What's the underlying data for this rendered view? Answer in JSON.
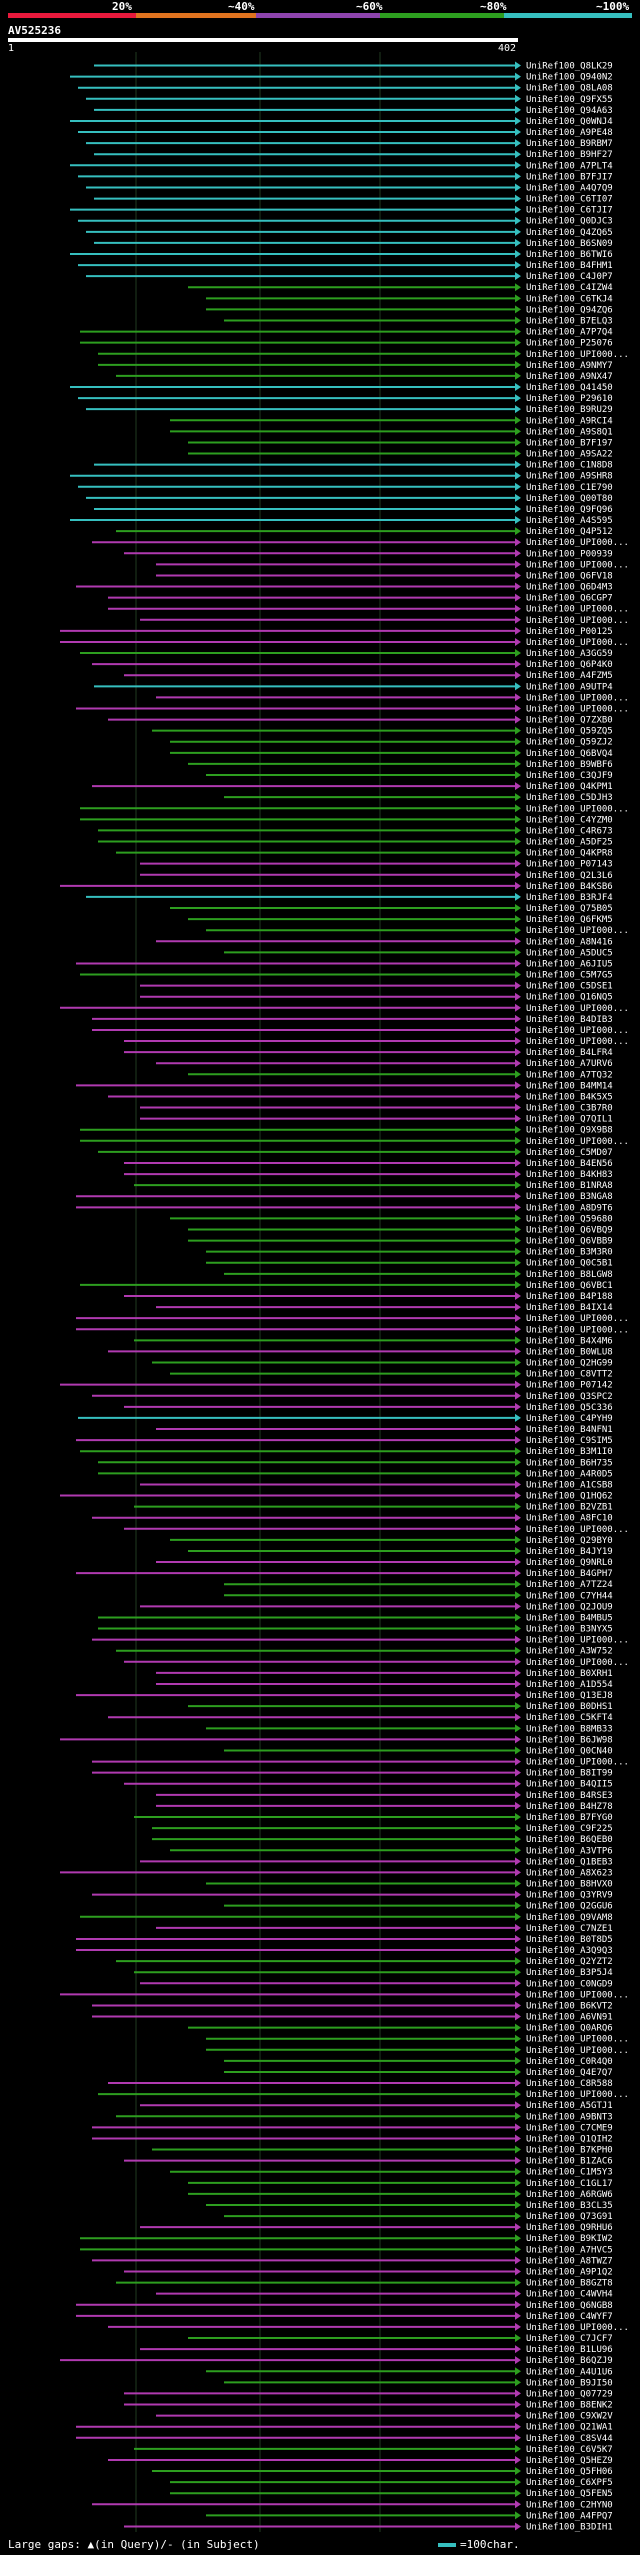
{
  "scale_labels": [
    "20%",
    "~40%",
    "~60%",
    "~80%",
    "~100%"
  ],
  "scale_colors": [
    "#e8193c",
    "#e0731f",
    "#8e44ad",
    "#2d9e1f",
    "#36bfbf"
  ],
  "query": {
    "name": "AV525236",
    "start": "1",
    "end": "402"
  },
  "legend": {
    "gaps": "Large gaps: ▲(in Query)/- (in Subject)",
    "scale": "=100char."
  },
  "hits": [
    {
      "id": "UniRef100_Q8LK29",
      "color": "cyan"
    },
    {
      "id": "UniRef100_Q940N2",
      "color": "cyan"
    },
    {
      "id": "UniRef100_Q8LA08",
      "color": "cyan"
    },
    {
      "id": "UniRef100_Q9FX55",
      "color": "cyan"
    },
    {
      "id": "UniRef100_Q94A63",
      "color": "cyan"
    },
    {
      "id": "UniRef100_Q0WNJ4",
      "color": "cyan"
    },
    {
      "id": "UniRef100_A9PE48",
      "color": "cyan"
    },
    {
      "id": "UniRef100_B9RBM7",
      "color": "cyan"
    },
    {
      "id": "UniRef100_B9HF27",
      "color": "cyan"
    },
    {
      "id": "UniRef100_A7PLT4",
      "color": "cyan"
    },
    {
      "id": "UniRef100_B7FJI7",
      "color": "cyan"
    },
    {
      "id": "UniRef100_A4Q7Q9",
      "color": "cyan"
    },
    {
      "id": "UniRef100_C6TI07",
      "color": "cyan"
    },
    {
      "id": "UniRef100_C6TJI7",
      "color": "cyan"
    },
    {
      "id": "UniRef100_Q0DJC3",
      "color": "cyan"
    },
    {
      "id": "UniRef100_Q4ZQ65",
      "color": "cyan"
    },
    {
      "id": "UniRef100_B6SN09",
      "color": "cyan"
    },
    {
      "id": "UniRef100_B6TWI6",
      "color": "cyan"
    },
    {
      "id": "UniRef100_B4FHM1",
      "color": "cyan"
    },
    {
      "id": "UniRef100_C4J0P7",
      "color": "cyan"
    },
    {
      "id": "UniRef100_C4IZW4",
      "color": "green"
    },
    {
      "id": "UniRef100_C6TKJ4",
      "color": "green"
    },
    {
      "id": "UniRef100_Q94ZQ6",
      "color": "green"
    },
    {
      "id": "UniRef100_B7ELQ3",
      "color": "green"
    },
    {
      "id": "UniRef100_A7P7Q4",
      "color": "green"
    },
    {
      "id": "UniRef100_P25076",
      "color": "green"
    },
    {
      "id": "UniRef100_UPI000...",
      "color": "green"
    },
    {
      "id": "UniRef100_A9NMY7",
      "color": "green"
    },
    {
      "id": "UniRef100_A9NX47",
      "color": "green"
    },
    {
      "id": "UniRef100_Q41450",
      "color": "cyan"
    },
    {
      "id": "UniRef100_P29610",
      "color": "cyan"
    },
    {
      "id": "UniRef100_B9RU29",
      "color": "cyan"
    },
    {
      "id": "UniRef100_A9RCI4",
      "color": "green"
    },
    {
      "id": "UniRef100_A9S8Q1",
      "color": "green"
    },
    {
      "id": "UniRef100_B7F197",
      "color": "green"
    },
    {
      "id": "UniRef100_A9SA22",
      "color": "green"
    },
    {
      "id": "UniRef100_C1N8D8",
      "color": "cyan"
    },
    {
      "id": "UniRef100_A9SHR8",
      "color": "cyan"
    },
    {
      "id": "UniRef100_C1E790",
      "color": "cyan"
    },
    {
      "id": "UniRef100_Q00T80",
      "color": "cyan"
    },
    {
      "id": "UniRef100_Q9FQ96",
      "color": "cyan"
    },
    {
      "id": "UniRef100_A4S595",
      "color": "cyan"
    },
    {
      "id": "UniRef100_Q4P512",
      "color": "green"
    },
    {
      "id": "UniRef100_UPI000...",
      "color": "magenta"
    },
    {
      "id": "UniRef100_P00939",
      "color": "magenta"
    },
    {
      "id": "UniRef100_UPI000...",
      "color": "magenta"
    },
    {
      "id": "UniRef100_Q6FV18",
      "color": "magenta"
    },
    {
      "id": "UniRef100_Q6D4M3",
      "color": "magenta"
    },
    {
      "id": "UniRef100_Q6CGP7",
      "color": "magenta"
    },
    {
      "id": "UniRef100_UPI000...",
      "color": "magenta"
    },
    {
      "id": "UniRef100_UPI000...",
      "color": "magenta"
    },
    {
      "id": "UniRef100_P00125",
      "color": "magenta"
    },
    {
      "id": "UniRef100_UPI000...",
      "color": "magenta"
    },
    {
      "id": "UniRef100_A3GG59",
      "color": "green"
    },
    {
      "id": "UniRef100_Q6P4K0",
      "color": "magenta"
    },
    {
      "id": "UniRef100_A4FZM5",
      "color": "magenta"
    },
    {
      "id": "UniRef100_A9UTP4",
      "color": "cyan"
    },
    {
      "id": "UniRef100_UPI000...",
      "color": "magenta"
    },
    {
      "id": "UniRef100_UPI000...",
      "color": "magenta"
    },
    {
      "id": "UniRef100_Q7ZXB0",
      "color": "magenta"
    },
    {
      "id": "UniRef100_Q59ZQ5",
      "color": "green"
    },
    {
      "id": "UniRef100_Q59ZJ2",
      "color": "green"
    },
    {
      "id": "UniRef100_Q6BVQ4",
      "color": "green"
    },
    {
      "id": "UniRef100_B9WBF6",
      "color": "green"
    },
    {
      "id": "UniRef100_C3QJF9",
      "color": "green"
    },
    {
      "id": "UniRef100_Q4KPM1",
      "color": "magenta"
    },
    {
      "id": "UniRef100_C5DJH3",
      "color": "green"
    },
    {
      "id": "UniRef100_UPI000...",
      "color": "green"
    },
    {
      "id": "UniRef100_C4YZM0",
      "color": "green"
    },
    {
      "id": "UniRef100_C4R673",
      "color": "green"
    },
    {
      "id": "UniRef100_A5DF25",
      "color": "green"
    },
    {
      "id": "UniRef100_Q4KPR8",
      "color": "green"
    },
    {
      "id": "UniRef100_P07143",
      "color": "magenta"
    },
    {
      "id": "UniRef100_Q2L3L6",
      "color": "magenta"
    },
    {
      "id": "UniRef100_B4KSB6",
      "color": "magenta"
    },
    {
      "id": "UniRef100_B3RJF4",
      "color": "cyan"
    },
    {
      "id": "UniRef100_Q75B05",
      "color": "green"
    },
    {
      "id": "UniRef100_Q6FKM5",
      "color": "green"
    },
    {
      "id": "UniRef100_UPI000...",
      "color": "green"
    },
    {
      "id": "UniRef100_A8N416",
      "color": "magenta"
    },
    {
      "id": "UniRef100_A5DUC5",
      "color": "green"
    },
    {
      "id": "UniRef100_A6JIU5",
      "color": "magenta"
    },
    {
      "id": "UniRef100_C5M7G5",
      "color": "green"
    },
    {
      "id": "UniRef100_C5DSE1",
      "color": "magenta"
    },
    {
      "id": "UniRef100_Q16NQ5",
      "color": "magenta"
    },
    {
      "id": "UniRef100_UPI000...",
      "color": "magenta"
    },
    {
      "id": "UniRef100_B4DIB3",
      "color": "magenta"
    },
    {
      "id": "UniRef100_UPI000...",
      "color": "magenta"
    },
    {
      "id": "UniRef100_UPI000...",
      "color": "magenta"
    },
    {
      "id": "UniRef100_B4LFR4",
      "color": "magenta"
    },
    {
      "id": "UniRef100_A7URV6",
      "color": "magenta"
    },
    {
      "id": "UniRef100_A7TQ32",
      "color": "green"
    },
    {
      "id": "UniRef100_B4MM14",
      "color": "magenta"
    },
    {
      "id": "UniRef100_B4K5X5",
      "color": "magenta"
    },
    {
      "id": "UniRef100_C3B7R0",
      "color": "magenta"
    },
    {
      "id": "UniRef100_Q7QIL1",
      "color": "magenta"
    },
    {
      "id": "UniRef100_Q9X9B8",
      "color": "green"
    },
    {
      "id": "UniRef100_UPI000...",
      "color": "green"
    },
    {
      "id": "UniRef100_C5MD07",
      "color": "green"
    },
    {
      "id": "UniRef100_B4EN56",
      "color": "magenta"
    },
    {
      "id": "UniRef100_B4KH83",
      "color": "magenta"
    },
    {
      "id": "UniRef100_B1NRA8",
      "color": "green"
    },
    {
      "id": "UniRef100_B3NGA8",
      "color": "magenta"
    },
    {
      "id": "UniRef100_A8D9T6",
      "color": "magenta"
    },
    {
      "id": "UniRef100_Q59680",
      "color": "green"
    },
    {
      "id": "UniRef100_Q6VBQ9",
      "color": "green"
    },
    {
      "id": "UniRef100_Q6VBB9",
      "color": "green"
    },
    {
      "id": "UniRef100_B3M3R0",
      "color": "green"
    },
    {
      "id": "UniRef100_Q0C5B1",
      "color": "green"
    },
    {
      "id": "UniRef100_B8LGW8",
      "color": "green"
    },
    {
      "id": "UniRef100_Q6VBC1",
      "color": "green"
    },
    {
      "id": "UniRef100_B4P188",
      "color": "magenta"
    },
    {
      "id": "UniRef100_B4IX14",
      "color": "magenta"
    },
    {
      "id": "UniRef100_UPI000...",
      "color": "magenta"
    },
    {
      "id": "UniRef100_UPI000...",
      "color": "magenta"
    },
    {
      "id": "UniRef100_B4X4M6",
      "color": "green"
    },
    {
      "id": "UniRef100_B0WLU8",
      "color": "magenta"
    },
    {
      "id": "UniRef100_Q2HG99",
      "color": "green"
    },
    {
      "id": "UniRef100_C8VTT2",
      "color": "green"
    },
    {
      "id": "UniRef100_P07142",
      "color": "magenta"
    },
    {
      "id": "UniRef100_Q3SPC2",
      "color": "magenta"
    },
    {
      "id": "UniRef100_Q5C336",
      "color": "magenta"
    },
    {
      "id": "UniRef100_C4PYH9",
      "color": "cyan"
    },
    {
      "id": "UniRef100_B4NFN1",
      "color": "magenta"
    },
    {
      "id": "UniRef100_C9SIM5",
      "color": "magenta"
    },
    {
      "id": "UniRef100_B3M1I0",
      "color": "green"
    },
    {
      "id": "UniRef100_B6H735",
      "color": "green"
    },
    {
      "id": "UniRef100_A4R0D5",
      "color": "green"
    },
    {
      "id": "UniRef100_A1CSB8",
      "color": "magenta"
    },
    {
      "id": "UniRef100_Q1HQ62",
      "color": "magenta"
    },
    {
      "id": "UniRef100_B2VZB1",
      "color": "green"
    },
    {
      "id": "UniRef100_A8FC10",
      "color": "magenta"
    },
    {
      "id": "UniRef100_UPI000...",
      "color": "magenta"
    },
    {
      "id": "UniRef100_Q29BY0",
      "color": "green"
    },
    {
      "id": "UniRef100_B4JY19",
      "color": "green"
    },
    {
      "id": "UniRef100_Q9NRL0",
      "color": "magenta"
    },
    {
      "id": "UniRef100_B4GPH7",
      "color": "magenta"
    },
    {
      "id": "UniRef100_A7TZ24",
      "color": "green"
    },
    {
      "id": "UniRef100_C7YH44",
      "color": "green"
    },
    {
      "id": "UniRef100_Q2JOU9",
      "color": "magenta"
    },
    {
      "id": "UniRef100_B4MBU5",
      "color": "green"
    },
    {
      "id": "UniRef100_B3NYX5",
      "color": "green"
    },
    {
      "id": "UniRef100_UPI000...",
      "color": "magenta"
    },
    {
      "id": "UniRef100_A3W752",
      "color": "green"
    },
    {
      "id": "UniRef100_UPI000...",
      "color": "magenta"
    },
    {
      "id": "UniRef100_B0XRH1",
      "color": "magenta"
    },
    {
      "id": "UniRef100_A1D554",
      "color": "magenta"
    },
    {
      "id": "UniRef100_Q13EJ8",
      "color": "magenta"
    },
    {
      "id": "UniRef100_B0DHS1",
      "color": "green"
    },
    {
      "id": "UniRef100_C5KFT4",
      "color": "magenta"
    },
    {
      "id": "UniRef100_B8MB33",
      "color": "green"
    },
    {
      "id": "UniRef100_B6JW98",
      "color": "magenta"
    },
    {
      "id": "UniRef100_Q0CN40",
      "color": "green"
    },
    {
      "id": "UniRef100_UPI000...",
      "color": "magenta"
    },
    {
      "id": "UniRef100_B8IT99",
      "color": "magenta"
    },
    {
      "id": "UniRef100_B4QII5",
      "color": "magenta"
    },
    {
      "id": "UniRef100_B4RSE3",
      "color": "magenta"
    },
    {
      "id": "UniRef100_B4HZ78",
      "color": "magenta"
    },
    {
      "id": "UniRef100_B7FYG0",
      "color": "green"
    },
    {
      "id": "UniRef100_C9F225",
      "color": "green"
    },
    {
      "id": "UniRef100_B6QEB0",
      "color": "green"
    },
    {
      "id": "UniRef100_A3VTP6",
      "color": "green"
    },
    {
      "id": "UniRef100_Q1BEB3",
      "color": "magenta"
    },
    {
      "id": "UniRef100_A8X623",
      "color": "magenta"
    },
    {
      "id": "UniRef100_B8HVX0",
      "color": "green"
    },
    {
      "id": "UniRef100_Q3YRV9",
      "color": "magenta"
    },
    {
      "id": "UniRef100_Q2GGU6",
      "color": "green"
    },
    {
      "id": "UniRef100_Q9VAM8",
      "color": "green"
    },
    {
      "id": "UniRef100_C7NZE1",
      "color": "magenta"
    },
    {
      "id": "UniRef100_B0T8D5",
      "color": "magenta"
    },
    {
      "id": "UniRef100_A3Q9Q3",
      "color": "magenta"
    },
    {
      "id": "UniRef100_Q2YZT2",
      "color": "green"
    },
    {
      "id": "UniRef100_B3P5J4",
      "color": "green"
    },
    {
      "id": "UniRef100_C0NGD9",
      "color": "magenta"
    },
    {
      "id": "UniRef100_UPI000...",
      "color": "magenta"
    },
    {
      "id": "UniRef100_B6KVT2",
      "color": "magenta"
    },
    {
      "id": "UniRef100_A6VN91",
      "color": "magenta"
    },
    {
      "id": "UniRef100_Q0ARQ6",
      "color": "green"
    },
    {
      "id": "UniRef100_UPI000...",
      "color": "green"
    },
    {
      "id": "UniRef100_UPI000...",
      "color": "green"
    },
    {
      "id": "UniRef100_C0R4Q0",
      "color": "green"
    },
    {
      "id": "UniRef100_Q4E7Q7",
      "color": "green"
    },
    {
      "id": "UniRef100_C8R588",
      "color": "magenta"
    },
    {
      "id": "UniRef100_UPI000...",
      "color": "green"
    },
    {
      "id": "UniRef100_A5GTJ1",
      "color": "magenta"
    },
    {
      "id": "UniRef100_A9BNT3",
      "color": "green"
    },
    {
      "id": "UniRef100_C7CME9",
      "color": "magenta"
    },
    {
      "id": "UniRef100_Q1QIH2",
      "color": "magenta"
    },
    {
      "id": "UniRef100_B7KPH0",
      "color": "green"
    },
    {
      "id": "UniRef100_B1ZAC6",
      "color": "magenta"
    },
    {
      "id": "UniRef100_C1M5Y3",
      "color": "green"
    },
    {
      "id": "UniRef100_C1GL17",
      "color": "green"
    },
    {
      "id": "UniRef100_A6RGW6",
      "color": "green"
    },
    {
      "id": "UniRef100_B3CL35",
      "color": "green"
    },
    {
      "id": "UniRef100_Q73G91",
      "color": "green"
    },
    {
      "id": "UniRef100_Q9RHU6",
      "color": "magenta"
    },
    {
      "id": "UniRef100_B9KIW2",
      "color": "green"
    },
    {
      "id": "UniRef100_A7HVC5",
      "color": "green"
    },
    {
      "id": "UniRef100_A8TWZ7",
      "color": "magenta"
    },
    {
      "id": "UniRef100_A9P1Q2",
      "color": "magenta"
    },
    {
      "id": "UniRef100_B8GZT8",
      "color": "green"
    },
    {
      "id": "UniRef100_C4WVH4",
      "color": "magenta"
    },
    {
      "id": "UniRef100_Q6NGB8",
      "color": "magenta"
    },
    {
      "id": "UniRef100_C4WYF7",
      "color": "magenta"
    },
    {
      "id": "UniRef100_UPI000...",
      "color": "magenta"
    },
    {
      "id": "UniRef100_C7JCF7",
      "color": "green"
    },
    {
      "id": "UniRef100_B1LU96",
      "color": "magenta"
    },
    {
      "id": "UniRef100_B6QZJ9",
      "color": "magenta"
    },
    {
      "id": "UniRef100_A4U1U6",
      "color": "green"
    },
    {
      "id": "UniRef100_B9JI50",
      "color": "green"
    },
    {
      "id": "UniRef100_Q07729",
      "color": "magenta"
    },
    {
      "id": "UniRef100_B8ENK2",
      "color": "magenta"
    },
    {
      "id": "UniRef100_C9XW2V",
      "color": "magenta"
    },
    {
      "id": "UniRef100_Q21WA1",
      "color": "magenta"
    },
    {
      "id": "UniRef100_C8SV44",
      "color": "magenta"
    },
    {
      "id": "UniRef100_C6V5K7",
      "color": "green"
    },
    {
      "id": "UniRef100_Q5HEZ9",
      "color": "magenta"
    },
    {
      "id": "UniRef100_Q5FH06",
      "color": "green"
    },
    {
      "id": "UniRef100_C6XPF5",
      "color": "green"
    },
    {
      "id": "UniRef100_Q5FEN5",
      "color": "green"
    },
    {
      "id": "UniRef100_C2HYN0",
      "color": "magenta"
    },
    {
      "id": "UniRef100_A4FPQ7",
      "color": "green"
    },
    {
      "id": "UniRef100_B3DIH1",
      "color": "magenta"
    }
  ]
}
